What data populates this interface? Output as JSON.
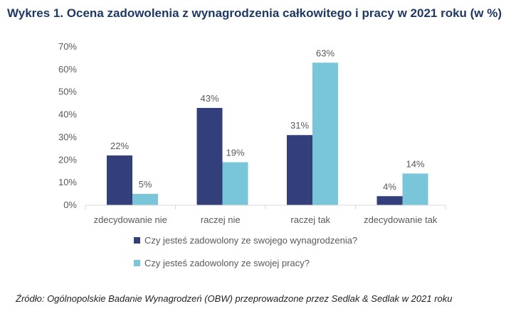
{
  "title": "Wykres 1. Ocena zadowolenia z wynagrodzenia całkowitego i pracy w 2021 roku (w %)",
  "source": "Źródło: Ogólnopolskie Badanie Wynagrodzeń (OBW) przeprowadzone przez Sedlak & Sedlak w 2021 roku",
  "chart_data": {
    "type": "bar",
    "categories": [
      "zdecydowanie nie",
      "raczej nie",
      "raczej tak",
      "zdecydowanie tak"
    ],
    "series": [
      {
        "name": "Czy jesteś zadowolony ze swojego wynagrodzenia?",
        "values": [
          22,
          43,
          31,
          4
        ],
        "labels": [
          "22%",
          "43%",
          "31%",
          "4%"
        ],
        "color": "#333f7a"
      },
      {
        "name": "Czy jesteś zadowolony ze swojej pracy?",
        "values": [
          5,
          19,
          63,
          14
        ],
        "labels": [
          "5%",
          "19%",
          "63%",
          "14%"
        ],
        "color": "#79c5d9"
      }
    ],
    "ylim": [
      0,
      70
    ],
    "yticks": [
      "0%",
      "10%",
      "20%",
      "30%",
      "40%",
      "50%",
      "60%",
      "70%"
    ],
    "grid": false,
    "legend_position": "bottom"
  }
}
